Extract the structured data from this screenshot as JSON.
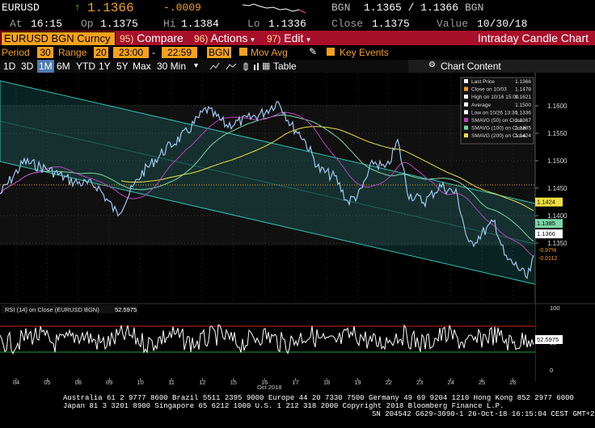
{
  "quote": {
    "symbol": "EURUSD",
    "arrow": "↑",
    "last": "1.1366",
    "change": "-.0009",
    "source1": "BGN",
    "bid_ask": "1.1365 / 1.1366",
    "source2": "BGN",
    "at_label": "At",
    "time": "16:15",
    "op_label": "Op",
    "open": "1.1375",
    "hi_label": "Hi",
    "high": "1.1384",
    "lo_label": "Lo",
    "low": "1.1336",
    "close_label": "Close",
    "close": "1.1375",
    "value_label": "Value",
    "value_date": "10/30/18"
  },
  "title_bar": {
    "ticker": "EURUSD BGN Curncy",
    "compare_num": "95)",
    "compare_label": "Compare",
    "actions_num": "96)",
    "actions_label": "Actions",
    "edit_num": "97)",
    "edit_label": "Edit",
    "chart_title": "Intraday Candle Chart"
  },
  "settings": {
    "period_label": "Period",
    "period_value": "30",
    "range_label": "Range",
    "range_value": "20",
    "range_start": "23:00",
    "range_sep": "-",
    "range_end": "22:59",
    "source": "BGN",
    "mov_avg_label": "Mov Avg",
    "key_events_label": "Key Events"
  },
  "periods": {
    "items": [
      "1D",
      "3D",
      "1M",
      "6M",
      "YTD",
      "1Y",
      "5Y",
      "Max"
    ],
    "active": "1M",
    "interval": "30 Min",
    "table_label": "Table",
    "chart_content_label": "Chart Content"
  },
  "legend": {
    "items": [
      {
        "label": "Last Price",
        "value": "1.1366",
        "color": "#ffffff"
      },
      {
        "label": "Close on 10/03",
        "value": "1.1478",
        "color": "#f5a11b"
      },
      {
        "label": "High on 10/16 15:00",
        "value": "1.1621",
        "color": "#ffffff"
      },
      {
        "label": "Average",
        "value": "1.1500",
        "color": "#ffffff"
      },
      {
        "label": "Low on 10/26 13:30",
        "value": "1.1336",
        "color": "#ffffff"
      },
      {
        "label": "SMAVG (50) on Close",
        "value": "1.1367",
        "color": "#c040c0"
      },
      {
        "label": "SMAVG (100) on Close",
        "value": "1.1385",
        "color": "#7ad6a8"
      },
      {
        "label": "SMAVG (200) on Close",
        "value": "1.1424",
        "color": "#f0e040"
      }
    ]
  },
  "price_axis": {
    "ticks": [
      "1.1600",
      "1.1550",
      "1.1500",
      "1.1450",
      "1.1400",
      "1.1350"
    ],
    "tags": [
      {
        "text": "1.1424",
        "bg": "#f0e040",
        "fg": "#000000"
      },
      {
        "text": "1.1385",
        "bg": "#7ad6a8",
        "fg": "#000000"
      },
      {
        "text": "1.1366",
        "bg": "#ffffff",
        "fg": "#000000"
      }
    ],
    "change_pct": "-0.97%",
    "change_abs": "-0.0112"
  },
  "rsi": {
    "label": "RSI (14) on Close (EURUSD BGN)",
    "value": "52.5975",
    "ticks": [
      "100",
      "50",
      "0"
    ]
  },
  "x_axis": {
    "labels": [
      "04",
      "05",
      "08",
      "09",
      "10",
      "11",
      "12",
      "15",
      "16",
      "17",
      "18",
      "19",
      "22",
      "23",
      "24",
      "25",
      "26"
    ],
    "month": "Oct 2018"
  },
  "footer": {
    "line1": "Australia 61 2 9777 8600 Brazil 5511 2395 9000 Europe 44 20 7330 7500 Germany 49 69 9204 1210 Hong Kong 852 2977 6000",
    "line2": "Japan 81 3 3201 8900        Singapore 65 6212 1000        U.S. 1 212 318 2000             Copyright 2018 Bloomberg Finance L.P.",
    "line3": "SN 204542 G629-3090-1 26-Oct-18 16:15:04 CEST GMT+2:00"
  },
  "colors": {
    "accent": "#f5a11b",
    "title_bar": "#a8102a",
    "channel": "#2ec4b6",
    "price_line": "#9ec8f0",
    "sma50": "#c040c0",
    "sma100": "#7ad6a8",
    "sma200": "#f0e040"
  }
}
